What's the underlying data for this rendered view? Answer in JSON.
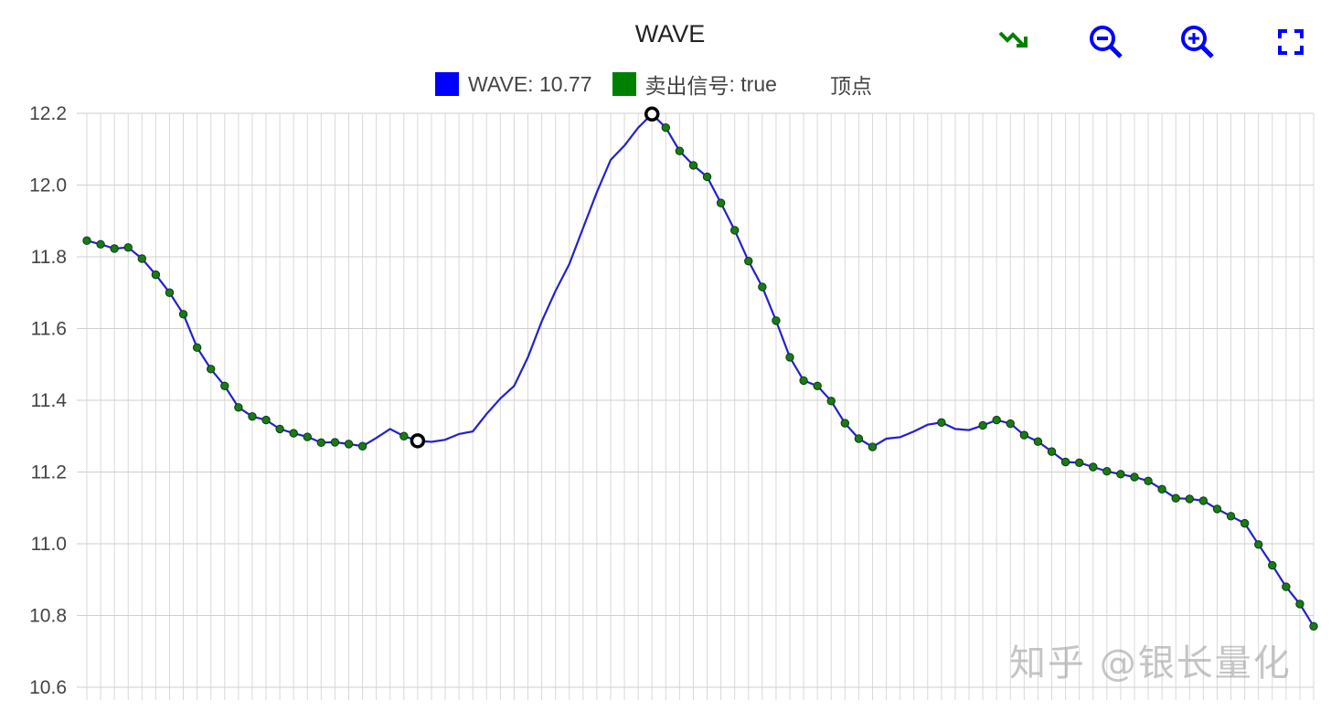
{
  "chart_data": {
    "type": "line",
    "title": "WAVE",
    "series": [
      {
        "name": "WAVE",
        "color": "#0000ff",
        "legend_value": "10.77"
      }
    ],
    "signal_series": {
      "name": "卖出信号",
      "color": "#008000",
      "legend_value": "true"
    },
    "peak_label": "顶点",
    "ylim": [
      10.6,
      12.2
    ],
    "yticks": [
      "12.2",
      "12.0",
      "11.8",
      "11.6",
      "11.4",
      "11.2",
      "11.0",
      "10.8",
      "10.6"
    ],
    "grid": true,
    "values": [
      11.845,
      11.835,
      11.823,
      11.826,
      11.795,
      11.75,
      11.7,
      11.64,
      11.547,
      11.487,
      11.44,
      11.38,
      11.355,
      11.345,
      11.32,
      11.308,
      11.298,
      11.282,
      11.283,
      11.278,
      11.272,
      11.295,
      11.32,
      11.3,
      11.287,
      11.284,
      11.29,
      11.306,
      11.313,
      11.362,
      11.405,
      11.44,
      11.52,
      11.62,
      11.705,
      11.78,
      11.88,
      11.98,
      12.07,
      12.11,
      12.16,
      12.198,
      12.16,
      12.095,
      12.055,
      12.023,
      11.95,
      11.874,
      11.788,
      11.716,
      11.622,
      11.52,
      11.455,
      11.44,
      11.398,
      11.336,
      11.293,
      11.27,
      11.293,
      11.297,
      11.313,
      11.332,
      11.338,
      11.32,
      11.317,
      11.33,
      11.345,
      11.335,
      11.303,
      11.285,
      11.257,
      11.228,
      11.226,
      11.214,
      11.202,
      11.194,
      11.186,
      11.175,
      11.152,
      11.127,
      11.125,
      11.12,
      11.097,
      11.077,
      11.057,
      10.998,
      10.94,
      10.88,
      10.832,
      10.77
    ],
    "sell_signal_indices": [
      0,
      1,
      2,
      3,
      4,
      5,
      6,
      7,
      8,
      9,
      10,
      11,
      12,
      13,
      14,
      15,
      16,
      17,
      18,
      19,
      20,
      23,
      42,
      43,
      44,
      45,
      46,
      47,
      48,
      49,
      50,
      51,
      52,
      53,
      54,
      55,
      56,
      57,
      62,
      65,
      66,
      67,
      68,
      69,
      70,
      71,
      72,
      73,
      74,
      75,
      76,
      77,
      78,
      79,
      80,
      81,
      82,
      83,
      84,
      85,
      86,
      87,
      88,
      89
    ],
    "peak_indices": [
      24,
      41
    ]
  },
  "toolbar": {
    "icons": [
      "trend-down-icon",
      "zoom-out-icon",
      "zoom-in-icon",
      "fullscreen-icon"
    ],
    "colors": {
      "trend": "#008000",
      "zoom": "#0000ff",
      "fullscreen": "#0000ff"
    }
  },
  "watermark": "知乎 @银长量化"
}
